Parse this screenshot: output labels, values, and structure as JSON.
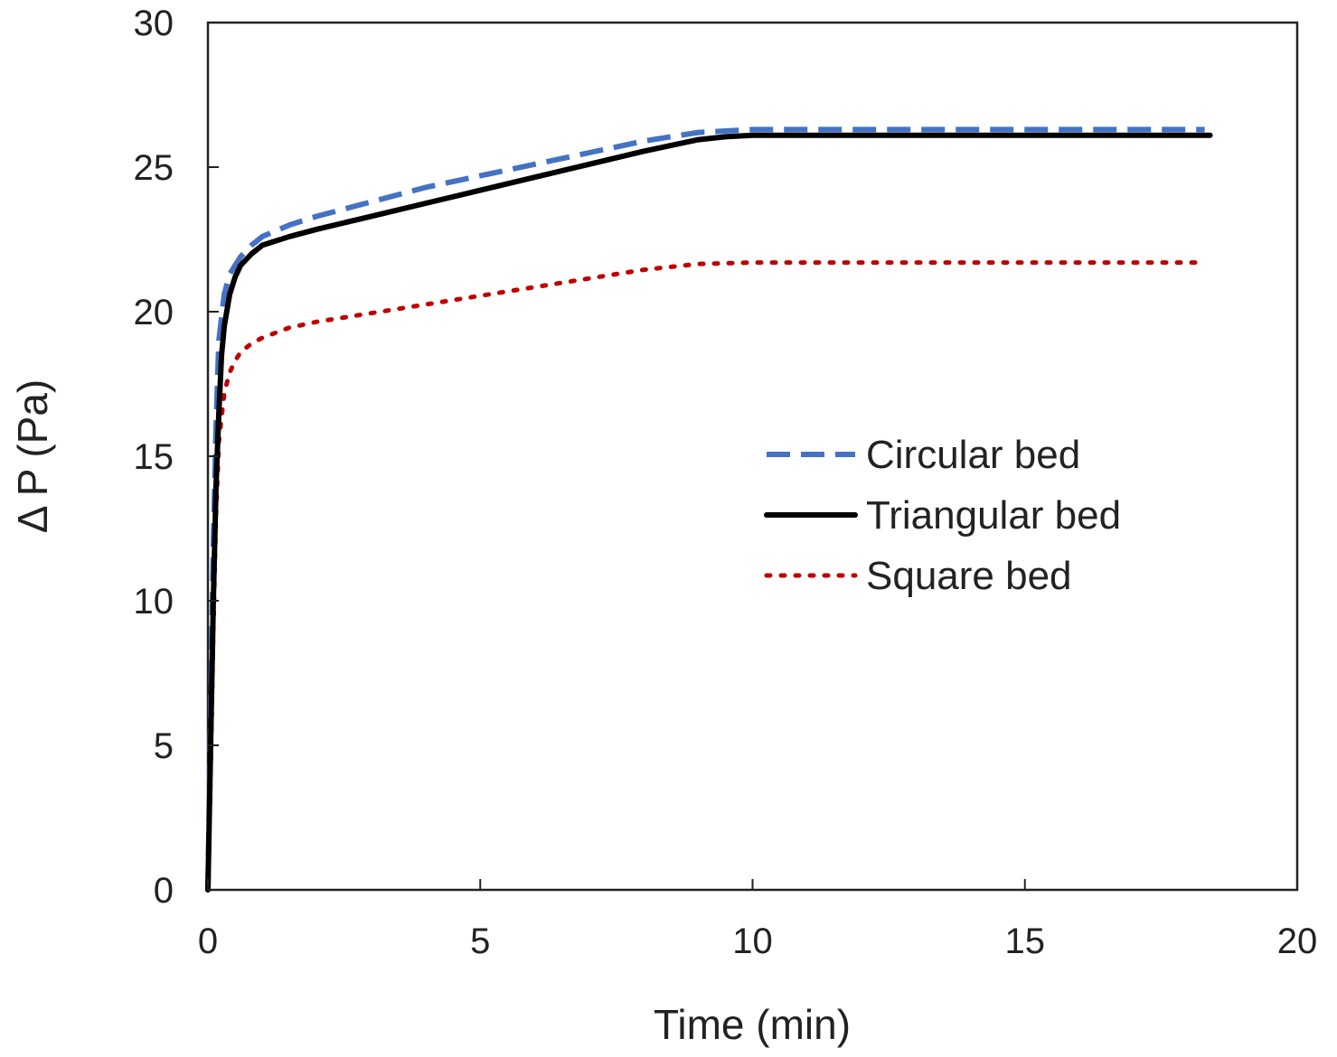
{
  "chart_data": {
    "type": "line",
    "title": "",
    "xlabel": "Time (min)",
    "ylabel": "Δ P (Pa)",
    "xlim": [
      0,
      20
    ],
    "ylim": [
      0,
      30
    ],
    "xticks": [
      0,
      5,
      10,
      15,
      20
    ],
    "yticks": [
      0,
      5,
      10,
      15,
      20,
      25,
      30
    ],
    "grid": false,
    "legend_position": "center-right",
    "series": [
      {
        "name": "Circular bed",
        "color": "#4472C4",
        "style": "dashed",
        "x": [
          0,
          0.05,
          0.1,
          0.15,
          0.2,
          0.3,
          0.4,
          0.6,
          0.8,
          1.0,
          1.5,
          2,
          3,
          4,
          5,
          6,
          7,
          8,
          9,
          9.5,
          10,
          11,
          12,
          13,
          14,
          15,
          16,
          17,
          18,
          18.3
        ],
        "y": [
          0,
          6,
          12,
          16,
          19,
          20.6,
          21.3,
          21.9,
          22.3,
          22.6,
          23.0,
          23.3,
          23.8,
          24.3,
          24.7,
          25.1,
          25.5,
          25.9,
          26.2,
          26.25,
          26.3,
          26.3,
          26.3,
          26.3,
          26.3,
          26.3,
          26.3,
          26.3,
          26.3,
          26.3
        ]
      },
      {
        "name": "Triangular bed",
        "color": "#000000",
        "style": "solid",
        "x": [
          0,
          0.05,
          0.1,
          0.15,
          0.2,
          0.25,
          0.3,
          0.4,
          0.5,
          0.6,
          0.8,
          1.0,
          1.5,
          2,
          3,
          4,
          5,
          6,
          7,
          8,
          9,
          9.5,
          10,
          11,
          12,
          13,
          14,
          15,
          16,
          17,
          18,
          18.4
        ],
        "y": [
          0,
          5,
          10,
          14,
          16.5,
          18.5,
          19.5,
          20.6,
          21.2,
          21.6,
          22.0,
          22.3,
          22.6,
          22.85,
          23.3,
          23.75,
          24.2,
          24.65,
          25.1,
          25.55,
          25.95,
          26.05,
          26.1,
          26.1,
          26.1,
          26.1,
          26.1,
          26.1,
          26.1,
          26.1,
          26.1,
          26.1
        ]
      },
      {
        "name": "Square bed",
        "color": "#C00000",
        "style": "dotted",
        "x": [
          0,
          0.05,
          0.1,
          0.15,
          0.2,
          0.3,
          0.4,
          0.5,
          0.6,
          0.8,
          1.0,
          1.5,
          2,
          3,
          4,
          5,
          6,
          7,
          8,
          9,
          10,
          11,
          12,
          13,
          14,
          15,
          16,
          17,
          18,
          18.2
        ],
        "y": [
          0,
          4,
          9,
          13,
          15.5,
          17.2,
          17.9,
          18.3,
          18.6,
          18.9,
          19.1,
          19.45,
          19.65,
          19.95,
          20.25,
          20.55,
          20.85,
          21.15,
          21.45,
          21.65,
          21.7,
          21.7,
          21.7,
          21.7,
          21.7,
          21.7,
          21.7,
          21.7,
          21.7,
          21.7
        ]
      }
    ]
  }
}
